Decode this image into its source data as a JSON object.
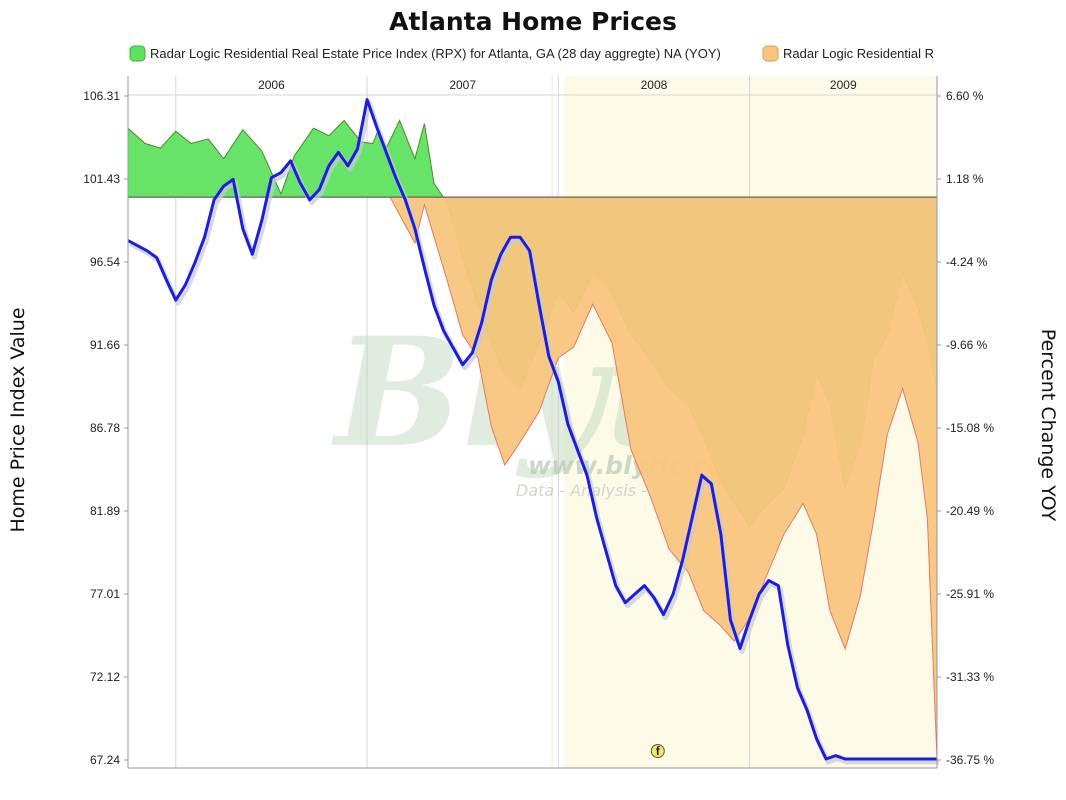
{
  "chart_data": {
    "type": "area",
    "title": "Atlanta Home Prices",
    "ylabel_left": "Home Price Index Value",
    "ylabel_right": "Percent Change YOY",
    "legend_position": "top",
    "legend": [
      {
        "label": "Radar Logic Residential Real Estate Price Index (RPX) for Atlanta, GA (28 day aggregte) NA (YOY)",
        "color": "#5fe35f"
      },
      {
        "label": "Radar Logic Residential R",
        "color": "#f8c57e"
      }
    ],
    "x_ticks": [
      "2006",
      "2007",
      "2008",
      "2009"
    ],
    "left_ticks": [
      "106.31",
      "101.43",
      "96.54",
      "91.66",
      "86.78",
      "81.89",
      "77.01",
      "72.12",
      "67.24"
    ],
    "right_ticks": [
      "6.60 %",
      "1.18 %",
      "-4.24 %",
      "-9.66 %",
      "-15.08 %",
      "-20.49 %",
      "-25.91 %",
      "-31.33 %",
      "-36.75 %"
    ],
    "ylim_left": [
      67.24,
      106.31
    ],
    "ylim_right": [
      -36.75,
      6.6
    ],
    "xlim": [
      2005.75,
      2009.98
    ],
    "grid": true,
    "shaded_region": [
      2008.03,
      2009.98
    ],
    "event_marker": {
      "label": "f",
      "x": 2008.52
    },
    "series": [
      {
        "name": "Radar Logic Residential Real Estate Price Index (RPX) for Atlanta, GA (28 day aggregte) NA (YOY)",
        "axis": "right",
        "kind": "area",
        "color": "#5fe35f",
        "baseline": 0,
        "x": [
          2005.75,
          2005.84,
          2005.92,
          2006.0,
          2006.08,
          2006.17,
          2006.25,
          2006.35,
          2006.45,
          2006.55,
          2006.62,
          2006.72,
          2006.8,
          2006.88,
          2006.97,
          2007.03,
          2007.06,
          2007.1,
          2007.17,
          2007.25,
          2007.3,
          2007.35,
          2007.42,
          2007.5,
          2007.58,
          2007.65,
          2007.72,
          2007.8,
          2007.9,
          2008.0,
          2008.08,
          2008.18,
          2008.28,
          2008.38,
          2008.48,
          2008.58,
          2008.68,
          2008.76,
          2008.85,
          2008.92,
          2009.0,
          2009.08,
          2009.18,
          2009.28,
          2009.35,
          2009.42,
          2009.5,
          2009.58,
          2009.65,
          2009.72,
          2009.8,
          2009.88,
          2009.93,
          2009.98
        ],
        "y": [
          4.5,
          3.5,
          3.2,
          4.3,
          3.5,
          3.8,
          2.5,
          4.4,
          3.0,
          0.2,
          2.7,
          4.5,
          4.0,
          5.0,
          3.6,
          3.5,
          4.4,
          3.2,
          5.0,
          2.5,
          4.8,
          0.9,
          -0.4,
          -4.0,
          -7.0,
          -9.5,
          -11.5,
          -12.5,
          -9.5,
          -6.2,
          -7.5,
          -5.0,
          -6.3,
          -9.0,
          -10.5,
          -12.5,
          -13.5,
          -15.7,
          -18.5,
          -20.0,
          -21.5,
          -20.2,
          -19.0,
          -15.5,
          -11.5,
          -13.5,
          -19.0,
          -16.0,
          -10.5,
          -9.0,
          -5.0,
          -7.2,
          -9.5,
          -12.5
        ]
      },
      {
        "name": "Radar Logic Residential R",
        "axis": "right",
        "kind": "area",
        "color": "#f8c57e",
        "baseline": 0,
        "x": [
          2007.12,
          2007.25,
          2007.3,
          2007.42,
          2007.5,
          2007.58,
          2007.65,
          2007.72,
          2007.8,
          2007.9,
          2008.0,
          2008.08,
          2008.18,
          2008.28,
          2008.38,
          2008.48,
          2008.58,
          2008.68,
          2008.76,
          2008.85,
          2008.92,
          2009.0,
          2009.08,
          2009.18,
          2009.28,
          2009.35,
          2009.42,
          2009.5,
          2009.58,
          2009.65,
          2009.72,
          2009.8,
          2009.88,
          2009.93,
          2009.98
        ],
        "y": [
          0,
          -3.0,
          -0.5,
          -5.5,
          -9.0,
          -10.5,
          -15.0,
          -17.5,
          -16.0,
          -14.0,
          -10.5,
          -9.8,
          -7.0,
          -9.5,
          -16.5,
          -19.5,
          -23.0,
          -24.5,
          -27.0,
          -28.0,
          -29.0,
          -27.5,
          -25.0,
          -22.0,
          -20.0,
          -22.0,
          -27.0,
          -29.5,
          -26.0,
          -21.0,
          -15.5,
          -12.5,
          -16.0,
          -21.0,
          -36.75
        ]
      },
      {
        "name": "Home Price Index Value",
        "axis": "left",
        "kind": "line",
        "color": "#1c1fd8",
        "x": [
          2005.75,
          2005.8,
          2005.85,
          2005.9,
          2005.95,
          2006.0,
          2006.05,
          2006.1,
          2006.15,
          2006.2,
          2006.25,
          2006.3,
          2006.35,
          2006.4,
          2006.45,
          2006.5,
          2006.55,
          2006.6,
          2006.65,
          2006.7,
          2006.75,
          2006.8,
          2006.85,
          2006.9,
          2006.95,
          2007.0,
          2007.05,
          2007.1,
          2007.15,
          2007.2,
          2007.25,
          2007.3,
          2007.35,
          2007.4,
          2007.45,
          2007.5,
          2007.55,
          2007.6,
          2007.65,
          2007.7,
          2007.75,
          2007.8,
          2007.85,
          2007.9,
          2007.95,
          2008.0,
          2008.05,
          2008.1,
          2008.15,
          2008.2,
          2008.25,
          2008.3,
          2008.35,
          2008.4,
          2008.45,
          2008.5,
          2008.55,
          2008.6,
          2008.65,
          2008.7,
          2008.75,
          2008.8,
          2008.85,
          2008.9,
          2008.95,
          2009.0,
          2009.05,
          2009.1,
          2009.15,
          2009.2,
          2009.25,
          2009.3,
          2009.35,
          2009.4,
          2009.45,
          2009.5,
          2009.55,
          2009.6,
          2009.65,
          2009.7,
          2009.75,
          2009.8,
          2009.85,
          2009.9,
          2009.95,
          2009.98
        ],
        "y": [
          97.8,
          97.5,
          97.2,
          96.8,
          95.5,
          94.3,
          95.2,
          96.5,
          98.0,
          100.2,
          101.0,
          101.4,
          98.5,
          97.0,
          99.0,
          101.5,
          101.8,
          102.5,
          101.2,
          100.2,
          100.8,
          102.2,
          103.0,
          102.2,
          103.2,
          106.1,
          104.5,
          103.0,
          101.5,
          100.2,
          98.5,
          96.2,
          94.0,
          92.5,
          91.5,
          90.5,
          91.2,
          93.0,
          95.5,
          97.0,
          98.0,
          98.0,
          97.2,
          94.0,
          91.0,
          89.5,
          87.0,
          85.5,
          84.0,
          81.5,
          79.5,
          77.5,
          76.5,
          77.0,
          77.5,
          76.8,
          75.8,
          77.0,
          79.0,
          81.5,
          84.0,
          83.5,
          80.5,
          75.5,
          73.8,
          75.5,
          77.0,
          77.8,
          77.5,
          74.0,
          71.5,
          70.2,
          68.5,
          67.3,
          67.5,
          67.3,
          67.3,
          67.3,
          67.3,
          67.3,
          67.3,
          67.3,
          67.3,
          67.3,
          67.3,
          67.3
        ]
      }
    ]
  }
}
